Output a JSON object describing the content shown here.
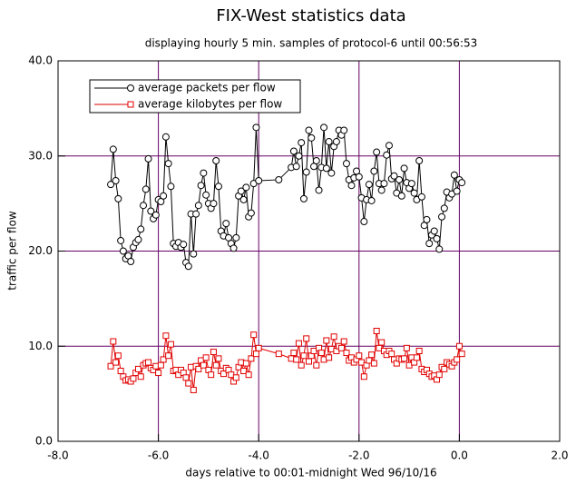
{
  "chart_data": {
    "type": "line",
    "title": "FIX-West statistics data",
    "subtitle": "displaying hourly 5 min. samples of protocol-6 until 00:56:53",
    "x_label": "days relative to 00:01-midnight Wed 96/10/16",
    "y_label": "traffic per flow",
    "xlim": [
      -8,
      2
    ],
    "ylim": [
      0,
      40
    ],
    "xticks": [
      {
        "value": -8,
        "label": "-8.0"
      },
      {
        "value": -6,
        "label": "-6.0"
      },
      {
        "value": -4,
        "label": "-4.0"
      },
      {
        "value": -2,
        "label": "-2.0"
      },
      {
        "value": 0,
        "label": "0.0"
      },
      {
        "value": 2,
        "label": "2.0"
      }
    ],
    "yticks": [
      {
        "value": 0,
        "label": "0.0"
      },
      {
        "value": 10,
        "label": "10.0"
      },
      {
        "value": 20,
        "label": "20.0"
      },
      {
        "value": 30,
        "label": "30.0"
      },
      {
        "value": 40,
        "label": "40.0"
      }
    ],
    "grid": true,
    "grid_color": "#660066",
    "legend_position": "upper-left",
    "x": [
      -6.95,
      -6.9,
      -6.85,
      -6.8,
      -6.75,
      -6.7,
      -6.65,
      -6.6,
      -6.55,
      -6.5,
      -6.45,
      -6.4,
      -6.35,
      -6.3,
      -6.25,
      -6.2,
      -6.15,
      -6.1,
      -6.05,
      -6,
      -5.95,
      -5.9,
      -5.85,
      -5.8,
      -5.75,
      -5.7,
      -5.65,
      -5.6,
      -5.55,
      -5.5,
      -5.45,
      -5.4,
      -5.35,
      -5.3,
      -5.25,
      -5.2,
      -5.15,
      -5.1,
      -5.05,
      -5,
      -4.95,
      -4.9,
      -4.85,
      -4.8,
      -4.75,
      -4.7,
      -4.65,
      -4.6,
      -4.55,
      -4.5,
      -4.45,
      -4.4,
      -4.35,
      -4.3,
      -4.25,
      -4.2,
      -4.15,
      -4.1,
      -4.05,
      -4,
      -3.6,
      -3.35,
      -3.3,
      -3.25,
      -3.2,
      -3.15,
      -3.1,
      -3.05,
      -3,
      -2.95,
      -2.9,
      -2.85,
      -2.8,
      -2.75,
      -2.7,
      -2.65,
      -2.6,
      -2.55,
      -2.5,
      -2.45,
      -2.4,
      -2.35,
      -2.3,
      -2.25,
      -2.2,
      -2.15,
      -2.1,
      -2.05,
      -2,
      -1.95,
      -1.9,
      -1.85,
      -1.8,
      -1.75,
      -1.7,
      -1.65,
      -1.6,
      -1.55,
      -1.5,
      -1.45,
      -1.4,
      -1.35,
      -1.3,
      -1.25,
      -1.2,
      -1.15,
      -1.1,
      -1.05,
      -1,
      -0.95,
      -0.9,
      -0.85,
      -0.8,
      -0.75,
      -0.7,
      -0.65,
      -0.6,
      -0.55,
      -0.5,
      -0.45,
      -0.4,
      -0.35,
      -0.3,
      -0.25,
      -0.2,
      -0.15,
      -0.1,
      -0.05,
      0,
      0.05
    ],
    "series": [
      {
        "name": "average packets per flow",
        "color": "#000000",
        "marker": "circle",
        "values": [
          27.0,
          30.7,
          27.4,
          25.5,
          21.1,
          20.0,
          19.2,
          19.5,
          18.9,
          20.4,
          20.9,
          21.2,
          22.3,
          24.8,
          26.5,
          29.7,
          24.2,
          23.4,
          23.8,
          25.4,
          25.2,
          25.8,
          32.0,
          29.2,
          26.8,
          20.8,
          20.5,
          20.9,
          20.4,
          20.7,
          18.8,
          18.4,
          23.9,
          19.7,
          23.9,
          24.8,
          26.9,
          28.2,
          25.9,
          25.0,
          24.5,
          25.0,
          29.5,
          26.8,
          22.1,
          21.6,
          22.9,
          21.4,
          20.8,
          20.3,
          21.4,
          25.8,
          26.3,
          25.4,
          26.7,
          23.6,
          24.0,
          27.1,
          33.0,
          27.4,
          27.5,
          28.8,
          30.5,
          28.9,
          30.0,
          31.4,
          25.5,
          28.3,
          32.7,
          31.9,
          28.9,
          29.5,
          26.4,
          28.8,
          33.0,
          28.7,
          31.5,
          28.2,
          31.0,
          31.5,
          32.7,
          32.2,
          32.7,
          29.2,
          27.5,
          26.9,
          27.7,
          28.4,
          27.8,
          25.6,
          23.1,
          25.4,
          27.0,
          25.3,
          28.4,
          30.4,
          27.1,
          26.4,
          27.1,
          30.1,
          31.1,
          27.6,
          27.9,
          26.1,
          27.5,
          25.8,
          28.7,
          27.2,
          26.6,
          27.1,
          26.1,
          25.4,
          29.5,
          25.7,
          22.7,
          23.3,
          20.8,
          21.7,
          22.1,
          21.3,
          20.2,
          23.6,
          24.5,
          26.2,
          25.6,
          26.0,
          28.0,
          26.3,
          27.5,
          27.2
        ]
      },
      {
        "name": "average kilobytes per flow",
        "color": "#e00000",
        "marker": "square",
        "values": [
          7.9,
          10.5,
          8.3,
          9.0,
          7.4,
          6.8,
          6.4,
          6.5,
          6.3,
          6.6,
          7.2,
          7.6,
          6.8,
          8.0,
          8.2,
          8.3,
          7.7,
          7.5,
          7.9,
          7.2,
          8.0,
          8.6,
          11.1,
          9.0,
          10.2,
          7.4,
          7.5,
          7.0,
          7.5,
          7.2,
          6.7,
          6.1,
          7.8,
          5.4,
          7.9,
          7.6,
          8.5,
          8.0,
          8.8,
          7.5,
          7.0,
          9.4,
          8.0,
          8.7,
          7.4,
          7.1,
          7.7,
          7.5,
          7.0,
          6.3,
          6.7,
          7.8,
          8.3,
          7.4,
          8.2,
          7.0,
          8.7,
          11.2,
          9.2,
          9.8,
          9.2,
          8.7,
          9.3,
          8.6,
          10.3,
          8.0,
          9.0,
          10.8,
          8.4,
          9.0,
          9.5,
          8.0,
          9.8,
          9.3,
          8.6,
          10.6,
          8.8,
          9.7,
          11.0,
          9.5,
          10.0,
          9.8,
          10.5,
          9.3,
          8.5,
          8.8,
          8.3,
          8.6,
          9.0,
          8.3,
          6.8,
          8.0,
          8.5,
          9.1,
          8.2,
          11.6,
          9.8,
          10.4,
          9.5,
          9.1,
          9.5,
          9.2,
          8.6,
          8.2,
          8.7,
          8.6,
          8.7,
          9.8,
          8.0,
          8.8,
          8.3,
          8.8,
          9.5,
          7.6,
          7.3,
          7.5,
          7.1,
          6.8,
          6.9,
          6.5,
          7.0,
          7.8,
          7.6,
          8.3,
          8.1,
          7.9,
          8.3,
          8.6,
          10.0,
          9.2
        ]
      }
    ]
  }
}
